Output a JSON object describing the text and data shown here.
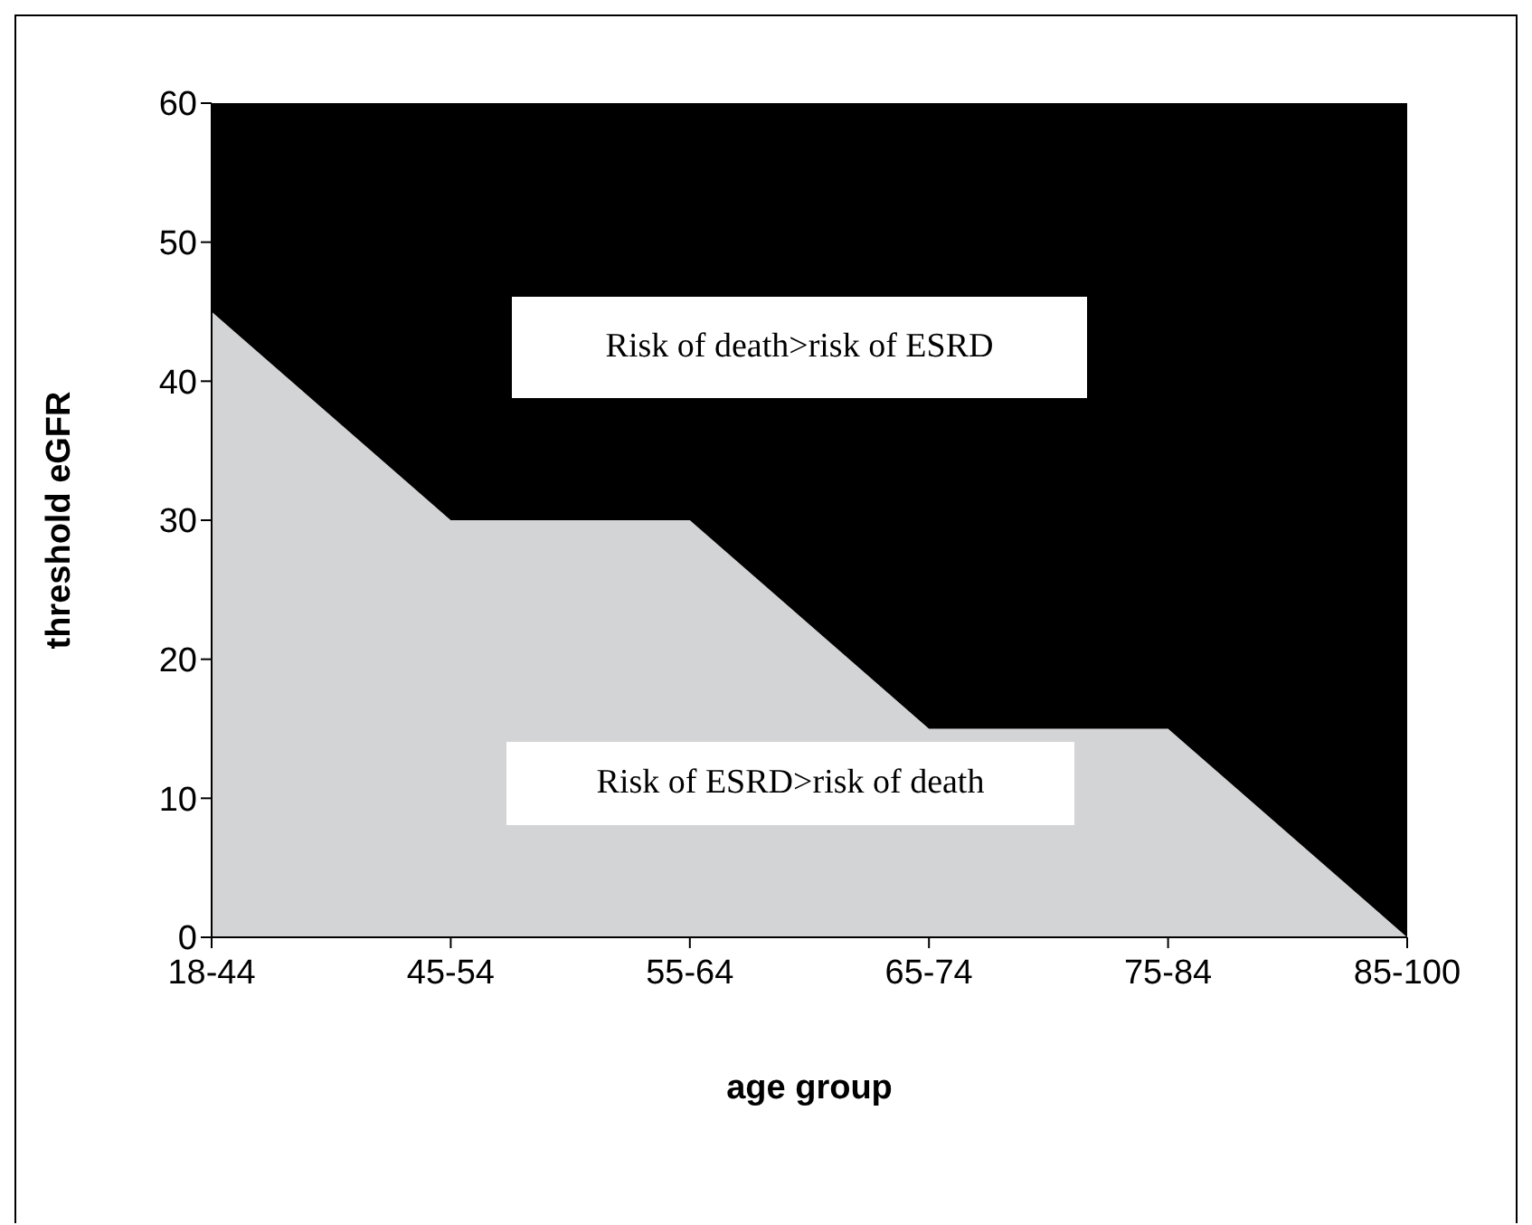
{
  "chart_data": {
    "type": "area",
    "stacked": true,
    "xlabel": "age group",
    "ylabel": "threshold eGFR",
    "categories": [
      "18-44",
      "45-54",
      "55-64",
      "65-74",
      "75-84",
      "85-100"
    ],
    "series": [
      {
        "color": "#d3d4d6",
        "values": [
          45,
          30,
          30,
          15,
          15,
          0
        ]
      },
      {
        "color": "#000000",
        "values": [
          15,
          30,
          30,
          45,
          45,
          60
        ]
      }
    ],
    "ylim": [
      0,
      60
    ],
    "yticks": [
      0,
      10,
      20,
      30,
      40,
      50,
      60
    ],
    "annotations": [
      "Risk of death>risk of ESRD",
      "Risk of ESRD>risk of death"
    ]
  }
}
